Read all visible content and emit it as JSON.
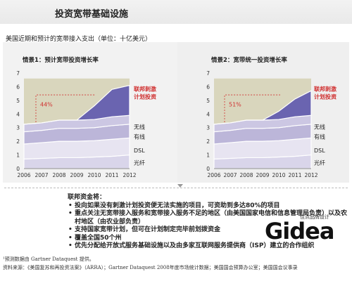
{
  "header": {
    "title": "投资宽带基础设施",
    "subtitle": "美国近期和预计的宽带接入支出（单位：十亿美元）"
  },
  "colors": {
    "fiber": "#d9d5ea",
    "dsl": "#e7e4f1",
    "cable": "#bcb6d9",
    "wireless": "#ccc7e3",
    "stimulus": "#6a64b0",
    "baseline": "#d9d6bd",
    "highlight": "#d03030"
  },
  "chart_data": [
    {
      "type": "area",
      "title": "情景1：预计宽带投资增长率",
      "x": [
        "2006",
        "2007",
        "2008",
        "2009",
        "2010",
        "2011",
        "2012"
      ],
      "ylim": [
        0,
        7
      ],
      "yticks": [
        "0",
        "1",
        "2",
        "3",
        "4",
        "5",
        "6",
        "7"
      ],
      "series": [
        {
          "name": "光纤",
          "values": [
            0.7,
            0.75,
            0.8,
            0.8,
            0.85,
            0.9,
            1.0
          ]
        },
        {
          "name": "DSL",
          "values": [
            1.1,
            1.15,
            1.2,
            1.2,
            1.2,
            1.25,
            1.25
          ]
        },
        {
          "name": "有线",
          "values": [
            0.9,
            0.9,
            0.95,
            0.95,
            0.95,
            1.0,
            1.0
          ]
        },
        {
          "name": "无线",
          "values": [
            0.55,
            0.55,
            0.6,
            0.6,
            0.6,
            0.65,
            0.65
          ]
        },
        {
          "name": "联邦刺激计划投资",
          "values": [
            0,
            0,
            0,
            0,
            1.0,
            2.0,
            2.2
          ]
        }
      ],
      "baseline_total": [
        6.6,
        6.6,
        6.6,
        6.6,
        6.6,
        6.6,
        6.6
      ],
      "annotation": "44%",
      "annotation_label": "联邦刺激计划投资"
    },
    {
      "type": "area",
      "title": "情景2：宽带统一投资增长率",
      "x": [
        "2006",
        "2007",
        "2008",
        "2009",
        "2010",
        "2011",
        "2012"
      ],
      "ylim": [
        0,
        7
      ],
      "yticks": [
        "0",
        "1",
        "2",
        "3",
        "4",
        "5",
        "6",
        "7"
      ],
      "series": [
        {
          "name": "光纤",
          "values": [
            0.7,
            0.75,
            0.8,
            0.8,
            0.85,
            0.9,
            1.0
          ]
        },
        {
          "name": "DSL",
          "values": [
            1.1,
            1.15,
            1.2,
            1.2,
            1.2,
            1.25,
            1.25
          ]
        },
        {
          "name": "有线",
          "values": [
            0.9,
            0.9,
            0.95,
            0.95,
            0.95,
            1.0,
            1.0
          ]
        },
        {
          "name": "无线",
          "values": [
            0.55,
            0.55,
            0.6,
            0.6,
            0.6,
            0.65,
            0.65
          ]
        },
        {
          "name": "联邦刺激计划投资",
          "values": [
            0,
            0,
            0,
            0,
            0.6,
            1.3,
            1.8
          ]
        }
      ],
      "baseline_total": [
        6.6,
        6.6,
        6.6,
        6.6,
        6.6,
        6.6,
        6.6
      ],
      "annotation": "51%",
      "annotation_label": "联邦刺激计划投资"
    }
  ],
  "notes": {
    "heading": "联邦资金将：",
    "items": [
      "投向如果没有刺激计划投资便无法实施的项目，可资助到多达80%的项目",
      "重点关注无宽带接入服务和宽带接入服务不足的地区（由美国国家电信和信息管理局负责）以及农村地区（由农业部负责）",
      "支持国家宽带计划，但可在计划制定完毕前划拨资金",
      "覆盖全国50个州",
      "优先分配给开放式服务基础设施以及由多家互联网服务提供商（ISP）建立的合作组织"
    ]
  },
  "footnotes": {
    "note1": "¹预测数据由 Gartner Dataquest 提供。",
    "source": "资料来源：《美国复苏和再投资法案》（ARRA）；Gartner Dataquest 2008年度市场统计数据；美国国会预算办公室；美国国会议事录"
  },
  "logo": {
    "word": "Gidea",
    "tagline": "佳点品牌设计"
  }
}
